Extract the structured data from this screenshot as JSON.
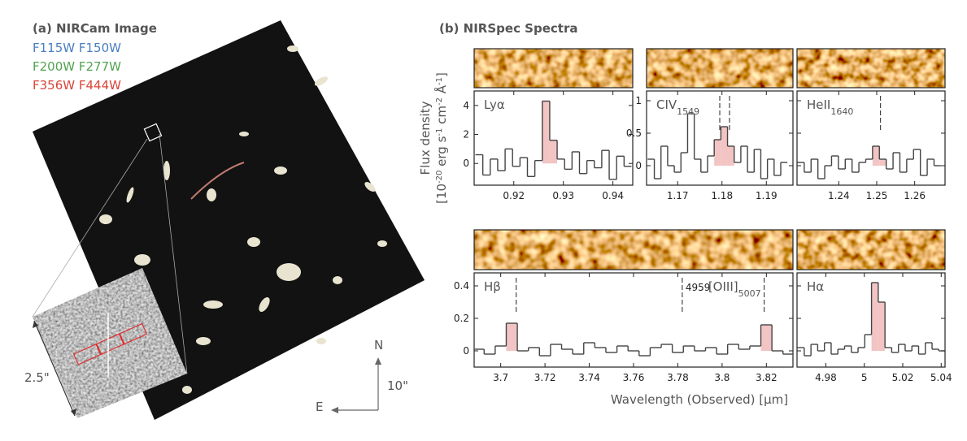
{
  "image_panel": {
    "title": "(a) NIRCam Image",
    "filters": [
      {
        "text": "F115W F150W",
        "color": "#4a7fc1"
      },
      {
        "text": "F200W F277W",
        "color": "#52a352"
      },
      {
        "text": "F356W F444W",
        "color": "#d9453a"
      }
    ],
    "inset_scale": "2.5\"",
    "compass": {
      "north": "N",
      "east": "E",
      "scale": "10\""
    }
  },
  "spectra_panel": {
    "title": "(b) NIRSpec Spectra",
    "ylabel": "Flux density",
    "yunit": [
      "[10",
      "-20",
      " erg s",
      "-1",
      " cm",
      "-2",
      " Å",
      "-1",
      "]"
    ],
    "xlabel": "Wavelength (Observed) [μm]"
  },
  "chart_data": [
    {
      "type": "line",
      "step": true,
      "color": "#444444",
      "highlight_color": "#f2c4c4",
      "x": [
        0.913,
        0.9145,
        0.916,
        0.9175,
        0.919,
        0.9205,
        0.922,
        0.9235,
        0.925,
        0.9265,
        0.928,
        0.9295,
        0.931,
        0.9325,
        0.934,
        0.9355,
        0.937,
        0.9385,
        0.94,
        0.9415,
        0.943
      ],
      "values": [
        0.6,
        -0.8,
        0.3,
        -0.5,
        1.0,
        -0.2,
        0.4,
        -0.9,
        0.2,
        4.3,
        1.6,
        0.3,
        -0.4,
        0.8,
        -0.7,
        0.2,
        -0.3,
        0.9,
        -1.1,
        0.5,
        -0.2
      ],
      "highlights": [
        [
          0.9255,
          0.929
        ]
      ],
      "xlim": [
        0.912,
        0.944
      ],
      "xticks": [
        0.92,
        0.93,
        0.94
      ],
      "ylim": [
        -1.5,
        5
      ],
      "yticks": [
        0,
        2,
        4
      ],
      "show_ytick_labels": true,
      "markers": [],
      "labels": [
        {
          "text": "Lyα"
        }
      ]
    },
    {
      "type": "line",
      "step": true,
      "color": "#444444",
      "highlight_color": "#f2c4c4",
      "x": [
        1.164,
        1.1655,
        1.167,
        1.1685,
        1.17,
        1.1715,
        1.173,
        1.1745,
        1.176,
        1.1775,
        1.179,
        1.1805,
        1.182,
        1.1835,
        1.185,
        1.1865,
        1.188,
        1.1895,
        1.191,
        1.1925,
        1.194
      ],
      "values": [
        0.1,
        -0.2,
        0.3,
        0.0,
        -0.1,
        0.2,
        0.8,
        0.1,
        -0.1,
        0.15,
        0.4,
        0.6,
        0.3,
        0.05,
        0.3,
        -0.1,
        0.25,
        -0.2,
        0.1,
        -0.15,
        0.05
      ],
      "highlights": [
        [
          1.178,
          1.183
        ]
      ],
      "xlim": [
        1.163,
        1.196
      ],
      "xticks": [
        1.17,
        1.18,
        1.19
      ],
      "ylim": [
        -0.3,
        1.15
      ],
      "yticks": [
        0,
        0.5,
        1
      ],
      "show_ytick_labels": true,
      "markers": [
        1.1795,
        1.1817
      ],
      "labels": [
        {
          "text": "CIV",
          "sub": "1549"
        }
      ]
    },
    {
      "type": "line",
      "step": true,
      "color": "#444444",
      "highlight_color": "#f2c4c4",
      "x": [
        1.23,
        1.2318,
        1.2336,
        1.2354,
        1.2372,
        1.239,
        1.2408,
        1.2426,
        1.2444,
        1.2462,
        1.248,
        1.2498,
        1.2516,
        1.2534,
        1.2552,
        1.257,
        1.2588,
        1.2606,
        1.2624,
        1.2642,
        1.266
      ],
      "values": [
        0.05,
        -0.1,
        0.1,
        -0.2,
        0.0,
        0.15,
        -0.05,
        0.1,
        -0.1,
        0.05,
        0.1,
        0.3,
        0.1,
        -0.05,
        0.2,
        -0.1,
        0.1,
        0.25,
        -0.15,
        0.1,
        0.0
      ],
      "highlights": [
        [
          1.2489,
          1.2525
        ]
      ],
      "xlim": [
        1.229,
        1.268
      ],
      "xticks": [
        1.24,
        1.25,
        1.26
      ],
      "ylim": [
        -0.3,
        1.15
      ],
      "yticks": [
        0,
        0.5,
        1
      ],
      "show_ytick_labels": false,
      "markers": [
        1.251
      ],
      "labels": [
        {
          "text": "HeII",
          "sub": "1640"
        }
      ]
    },
    {
      "type": "line",
      "step": true,
      "color": "#444444",
      "highlight_color": "#f2c4c4",
      "x": [
        3.69,
        3.695,
        3.7,
        3.705,
        3.71,
        3.715,
        3.72,
        3.725,
        3.73,
        3.735,
        3.74,
        3.745,
        3.75,
        3.755,
        3.76,
        3.765,
        3.77,
        3.775,
        3.78,
        3.785,
        3.79,
        3.795,
        3.8,
        3.805,
        3.81,
        3.815,
        3.82,
        3.825,
        3.83
      ],
      "values": [
        0.01,
        -0.02,
        0.03,
        0.17,
        0.0,
        0.02,
        -0.03,
        0.04,
        0.01,
        -0.02,
        0.05,
        0.02,
        -0.01,
        0.03,
        0.0,
        -0.03,
        0.02,
        0.04,
        -0.01,
        0.03,
        0.0,
        0.02,
        -0.02,
        0.04,
        0.01,
        0.03,
        0.16,
        0.0,
        -0.02
      ],
      "highlights": [
        [
          3.7025,
          3.7075
        ],
        [
          3.8175,
          3.8225
        ]
      ],
      "xlim": [
        3.688,
        3.832
      ],
      "xticks": [
        3.7,
        3.72,
        3.74,
        3.76,
        3.78,
        3.8,
        3.82
      ],
      "ylim": [
        -0.1,
        0.48
      ],
      "yticks": [
        0,
        0.2,
        0.4
      ],
      "show_ytick_labels": true,
      "markers": [
        3.707,
        3.782,
        3.819
      ],
      "labels": [
        {
          "text": "Hβ"
        },
        {
          "text": "4959"
        },
        {
          "text": "[OIII]",
          "sub": "5007"
        }
      ]
    },
    {
      "type": "line",
      "step": true,
      "color": "#444444",
      "highlight_color": "#f2c4c4",
      "x": [
        4.967,
        4.9705,
        4.974,
        4.9775,
        4.981,
        4.9845,
        4.988,
        4.9915,
        4.995,
        4.9985,
        5.002,
        5.0055,
        5.009,
        5.0125,
        5.016,
        5.0195,
        5.023,
        5.0265,
        5.03,
        5.0335,
        5.037,
        5.0405
      ],
      "values": [
        0.02,
        -0.03,
        0.04,
        0.0,
        0.05,
        -0.02,
        0.01,
        0.03,
        -0.01,
        0.02,
        0.1,
        0.42,
        0.3,
        0.02,
        -0.01,
        0.04,
        0.0,
        0.03,
        -0.02,
        0.05,
        0.01,
        0.0
      ],
      "highlights": [
        [
          5.0037,
          5.0107
        ]
      ],
      "xlim": [
        4.965,
        5.042
      ],
      "xticks": [
        4.98,
        5,
        5.02,
        5.04
      ],
      "ylim": [
        -0.1,
        0.48
      ],
      "yticks": [
        0,
        0.2,
        0.4
      ],
      "show_ytick_labels": false,
      "markers": [],
      "labels": [
        {
          "text": "Hα"
        }
      ]
    }
  ]
}
